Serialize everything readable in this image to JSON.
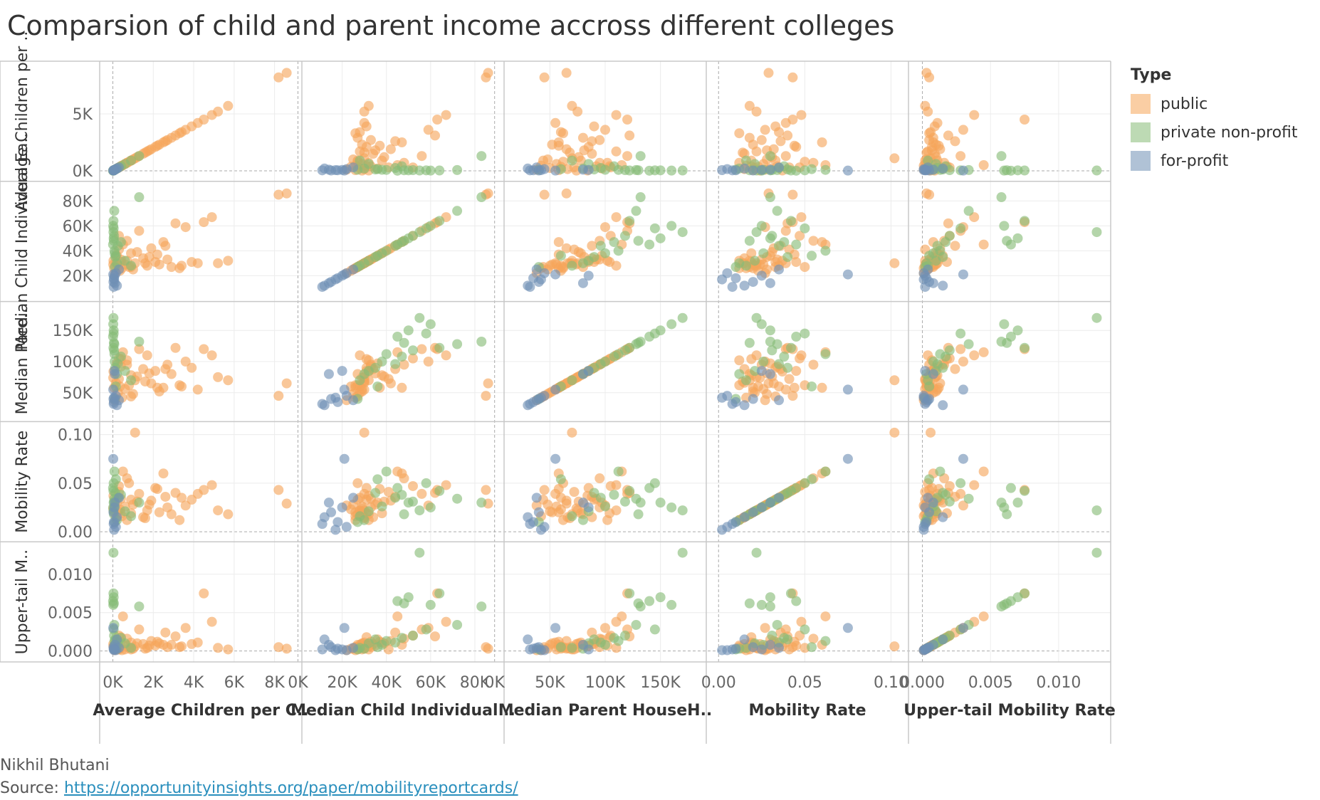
{
  "title": "Comparsion of child and parent income accross different colleges",
  "footer": {
    "author": "Nikhil Bhutani",
    "source_label": "Source: ",
    "source_url": "https://opportunityinsights.org/paper/mobilityreportcards/"
  },
  "chart_data": {
    "type": "scatter",
    "subtype": "scatter-matrix",
    "legend": {
      "title": "Type",
      "position": "right",
      "entries": [
        {
          "key": "public",
          "label": "public",
          "color": "#f5a55a"
        },
        {
          "key": "private",
          "label": "private non-profit",
          "color": "#86bc76"
        },
        {
          "key": "forprofit",
          "label": "for-profit",
          "color": "#6f8fb5"
        }
      ]
    },
    "variables": [
      {
        "key": "children",
        "row_label": "Average Children per ..",
        "column_label": "Average Children per C..",
        "range": [
          -300,
          9000
        ],
        "row_ticks": [
          {
            "value": 0,
            "label": "0K"
          },
          {
            "value": 5000,
            "label": "5K"
          }
        ],
        "col_ticks": [
          {
            "value": 0,
            "label": "0K"
          },
          {
            "value": 2000,
            "label": "2K"
          },
          {
            "value": 4000,
            "label": "4K"
          },
          {
            "value": 6000,
            "label": "6K"
          },
          {
            "value": 8000,
            "label": "8K"
          }
        ]
      },
      {
        "key": "child_earn",
        "row_label": "Median Child Individual Ea..",
        "column_label": "Median Child Individual ..",
        "range": [
          5000,
          90000
        ],
        "row_ticks": [
          {
            "value": 20000,
            "label": "20K"
          },
          {
            "value": 40000,
            "label": "40K"
          },
          {
            "value": 60000,
            "label": "60K"
          },
          {
            "value": 80000,
            "label": "80K"
          }
        ],
        "col_ticks": [
          {
            "value": 0,
            "label": "0K"
          },
          {
            "value": 20000,
            "label": "20K"
          },
          {
            "value": 40000,
            "label": "40K"
          },
          {
            "value": 60000,
            "label": "60K"
          },
          {
            "value": 80000,
            "label": "80K"
          }
        ]
      },
      {
        "key": "parent_inc",
        "row_label": "Median Pare..",
        "column_label": "Median Parent HouseH..",
        "range": [
          15000,
          185000
        ],
        "row_ticks": [
          {
            "value": 50000,
            "label": "50K"
          },
          {
            "value": 100000,
            "label": "100K"
          },
          {
            "value": 150000,
            "label": "150K"
          }
        ],
        "col_ticks": [
          {
            "value": 0,
            "label": "0K"
          },
          {
            "value": 50000,
            "label": "50K"
          },
          {
            "value": 100000,
            "label": "100K"
          },
          {
            "value": 150000,
            "label": "150K"
          }
        ]
      },
      {
        "key": "mobility",
        "row_label": "Mobility Rate",
        "column_label": "Mobility Rate",
        "range": [
          -0.003,
          0.106
        ],
        "row_ticks": [
          {
            "value": 0,
            "label": "0.00"
          },
          {
            "value": 0.05,
            "label": "0.05"
          },
          {
            "value": 0.1,
            "label": "0.10"
          }
        ],
        "col_ticks": [
          {
            "value": 0,
            "label": "0.00"
          },
          {
            "value": 0.05,
            "label": "0.05"
          },
          {
            "value": 0.1,
            "label": "0.10"
          }
        ]
      },
      {
        "key": "uppertail",
        "row_label": "Upper-tail M..",
        "column_label": "Upper-tail Mobility Rate",
        "range": [
          -0.0005,
          0.0133
        ],
        "row_ticks": [
          {
            "value": 0,
            "label": "0.000"
          },
          {
            "value": 0.005,
            "label": "0.005"
          },
          {
            "value": 0.01,
            "label": "0.010"
          }
        ],
        "col_ticks": [
          {
            "value": 0,
            "label": "0.000"
          },
          {
            "value": 0.005,
            "label": "0.005"
          },
          {
            "value": 0.01,
            "label": "0.010"
          }
        ]
      }
    ],
    "series": [
      {
        "name": "public",
        "points": [
          [
            8200,
            85000,
            45000,
            0.043,
            0.0005
          ],
          [
            8600,
            86000,
            65000,
            0.029,
            0.0003
          ],
          [
            5700,
            32000,
            70000,
            0.018,
            0.0002
          ],
          [
            5200,
            30000,
            75000,
            0.022,
            0.0004
          ],
          [
            4900,
            67000,
            110000,
            0.048,
            0.0038
          ],
          [
            4500,
            63000,
            120000,
            0.043,
            0.0075
          ],
          [
            4200,
            30000,
            55000,
            0.039,
            0.0011
          ],
          [
            3900,
            31000,
            90000,
            0.033,
            0.0009
          ],
          [
            3600,
            59000,
            100000,
            0.027,
            0.003
          ],
          [
            3400,
            28000,
            60000,
            0.035,
            0.0006
          ],
          [
            3100,
            62000,
            122000,
            0.04,
            0.0019
          ],
          [
            2900,
            27000,
            80000,
            0.018,
            0.0008
          ],
          [
            2700,
            33000,
            95000,
            0.025,
            0.0005
          ],
          [
            2500,
            47000,
            58000,
            0.06,
            0.0008
          ],
          [
            2300,
            29000,
            52000,
            0.02,
            0.001
          ],
          [
            2100,
            31000,
            85000,
            0.045,
            0.0007
          ],
          [
            1900,
            42000,
            65000,
            0.032,
            0.0013
          ],
          [
            1700,
            28000,
            110000,
            0.022,
            0.0004
          ],
          [
            1500,
            34000,
            88000,
            0.015,
            0.0009
          ],
          [
            1300,
            56000,
            120000,
            0.039,
            0.0028
          ],
          [
            1100,
            30000,
            70000,
            0.102,
            0.0006
          ],
          [
            1000,
            25000,
            48000,
            0.028,
            0.0003
          ],
          [
            900,
            38000,
            78000,
            0.019,
            0.0011
          ],
          [
            800,
            27000,
            62000,
            0.05,
            0.0004
          ],
          [
            700,
            32000,
            102000,
            0.012,
            0.0007
          ],
          [
            600,
            29000,
            56000,
            0.026,
            0.0002
          ],
          [
            500,
            45000,
            115000,
            0.062,
            0.0045
          ],
          [
            450,
            26000,
            42000,
            0.016,
            0.0001
          ],
          [
            400,
            33000,
            92000,
            0.034,
            0.0012
          ],
          [
            350,
            24000,
            60000,
            0.023,
            0.0003
          ],
          [
            300,
            41000,
            72000,
            0.041,
            0.0002
          ],
          [
            250,
            28000,
            50000,
            0.021,
            0.0008
          ],
          [
            200,
            36000,
            97000,
            0.03,
            0.0015
          ],
          [
            150,
            30000,
            66000,
            0.015,
            0.0004
          ],
          [
            100,
            22000,
            38000,
            0.027,
            0.0001
          ],
          [
            60,
            26000,
            58000,
            0.02,
            0.0005
          ],
          [
            30,
            32000,
            84000,
            0.037,
            0.0006
          ],
          [
            20,
            29000,
            74000,
            0.024,
            0.0009
          ],
          [
            300,
            52000,
            105000,
            0.047,
            0.002
          ],
          [
            700,
            48000,
            95000,
            0.055,
            0.0016
          ],
          [
            1600,
            30000,
            68000,
            0.014,
            0.0003
          ],
          [
            2600,
            44000,
            88000,
            0.036,
            0.0024
          ],
          [
            3300,
            26000,
            62000,
            0.012,
            0.0005
          ],
          [
            1200,
            39000,
            76000,
            0.031,
            0.001
          ],
          [
            1800,
            35000,
            81000,
            0.028,
            0.0007
          ],
          [
            2200,
            37000,
            58000,
            0.044,
            0.0012
          ],
          [
            400,
            31000,
            104000,
            0.019,
            0.0018
          ],
          [
            900,
            27000,
            44000,
            0.033,
            0.0002
          ]
        ]
      },
      {
        "name": "private non-profit",
        "points": [
          [
            20,
            60000,
            160000,
            0.025,
            0.006
          ],
          [
            30,
            55000,
            170000,
            0.022,
            0.0128
          ],
          [
            40,
            50000,
            150000,
            0.03,
            0.007
          ],
          [
            10,
            45000,
            140000,
            0.045,
            0.0065
          ],
          [
            50,
            48000,
            130000,
            0.018,
            0.0062
          ],
          [
            60,
            52000,
            118000,
            0.031,
            0.002
          ],
          [
            80,
            40000,
            112000,
            0.062,
            0.0013
          ],
          [
            90,
            38000,
            100000,
            0.026,
            0.0008
          ],
          [
            120,
            35000,
            90000,
            0.04,
            0.0015
          ],
          [
            150,
            36000,
            60000,
            0.054,
            0.0005
          ],
          [
            200,
            30000,
            80000,
            0.012,
            0.0003
          ],
          [
            250,
            44000,
            96000,
            0.035,
            0.0011
          ],
          [
            1300,
            83000,
            132000,
            0.03,
            0.0058
          ],
          [
            600,
            32000,
            85000,
            0.021,
            0.001
          ],
          [
            70,
            72000,
            128000,
            0.034,
            0.0034
          ],
          [
            40,
            58000,
            145000,
            0.05,
            0.0028
          ],
          [
            30,
            64000,
            122000,
            0.042,
            0.0075
          ],
          [
            900,
            28000,
            70000,
            0.016,
            0.0004
          ],
          [
            400,
            47000,
            108000,
            0.038,
            0.0017
          ],
          [
            100,
            27000,
            40000,
            0.01,
            0.0002
          ]
        ]
      },
      {
        "name": "for-profit",
        "points": [
          [
            30,
            15000,
            40000,
            0.02,
            0.0005
          ],
          [
            50,
            18000,
            35000,
            0.01,
            0.0003
          ],
          [
            80,
            20000,
            85000,
            0.025,
            0.0002
          ],
          [
            100,
            14000,
            80000,
            0.03,
            0.0008
          ],
          [
            150,
            22000,
            45000,
            0.005,
            0.0001
          ],
          [
            200,
            12000,
            30000,
            0.015,
            0.0015
          ],
          [
            300,
            25000,
            38000,
            0.035,
            0.0004
          ],
          [
            60,
            17000,
            42000,
            0.002,
            0.0001
          ],
          [
            40,
            11000,
            32000,
            0.008,
            0.0002
          ],
          [
            20,
            21000,
            55000,
            0.075,
            0.003
          ]
        ]
      }
    ]
  }
}
